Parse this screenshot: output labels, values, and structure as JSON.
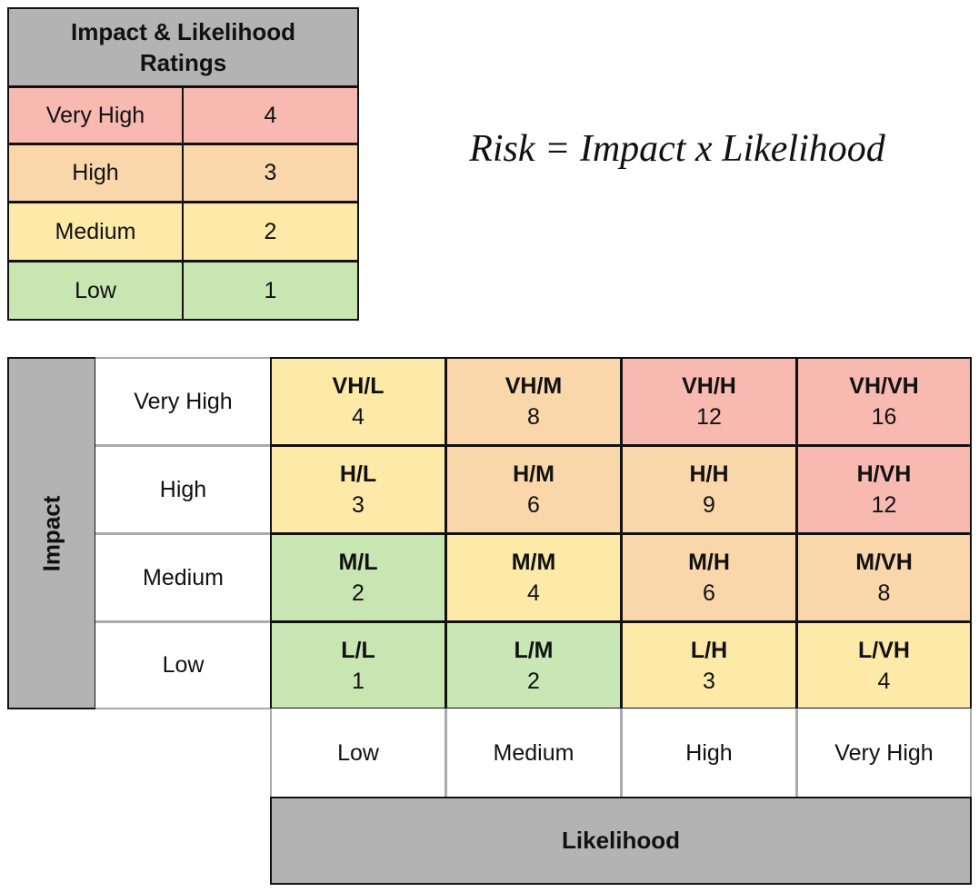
{
  "ratings_table": {
    "title": "Impact & Likelihood Ratings",
    "rows": [
      {
        "label": "Very High",
        "rating": 4,
        "color": "#f8b9b1"
      },
      {
        "label": "High",
        "rating": 3,
        "color": "#fad6ab"
      },
      {
        "label": "Medium",
        "rating": 2,
        "color": "#fdeaa9"
      },
      {
        "label": "Low",
        "rating": 1,
        "color": "#c7e6b1"
      }
    ]
  },
  "formula": "Risk = Impact x Likelihood",
  "risk_matrix": {
    "y_axis_title": "Impact",
    "x_axis_title": "Likelihood",
    "columns": [
      "Low",
      "Medium",
      "High",
      "Very High"
    ],
    "rows": [
      {
        "label": "Very High",
        "cells": [
          {
            "code": "VH/L",
            "score": 4,
            "color": "#fdeaa9"
          },
          {
            "code": "VH/M",
            "score": 8,
            "color": "#fad6ab"
          },
          {
            "code": "VH/H",
            "score": 12,
            "color": "#f8b9b1"
          },
          {
            "code": "VH/VH",
            "score": 16,
            "color": "#f8b9b1"
          }
        ]
      },
      {
        "label": "High",
        "cells": [
          {
            "code": "H/L",
            "score": 3,
            "color": "#fdeaa9"
          },
          {
            "code": "H/M",
            "score": 6,
            "color": "#fad6ab"
          },
          {
            "code": "H/H",
            "score": 9,
            "color": "#fad6ab"
          },
          {
            "code": "H/VH",
            "score": 12,
            "color": "#f8b9b1"
          }
        ]
      },
      {
        "label": "Medium",
        "cells": [
          {
            "code": "M/L",
            "score": 2,
            "color": "#c7e6b1"
          },
          {
            "code": "M/M",
            "score": 4,
            "color": "#fdeaa9"
          },
          {
            "code": "M/H",
            "score": 6,
            "color": "#fad6ab"
          },
          {
            "code": "M/VH",
            "score": 8,
            "color": "#fad6ab"
          }
        ]
      },
      {
        "label": "Low",
        "cells": [
          {
            "code": "L/L",
            "score": 1,
            "color": "#c7e6b1"
          },
          {
            "code": "L/M",
            "score": 2,
            "color": "#c9e7b5"
          },
          {
            "code": "L/H",
            "score": 3,
            "color": "#fdeaa9"
          },
          {
            "code": "L/VH",
            "score": 4,
            "color": "#fdeaa9"
          }
        ]
      }
    ]
  }
}
